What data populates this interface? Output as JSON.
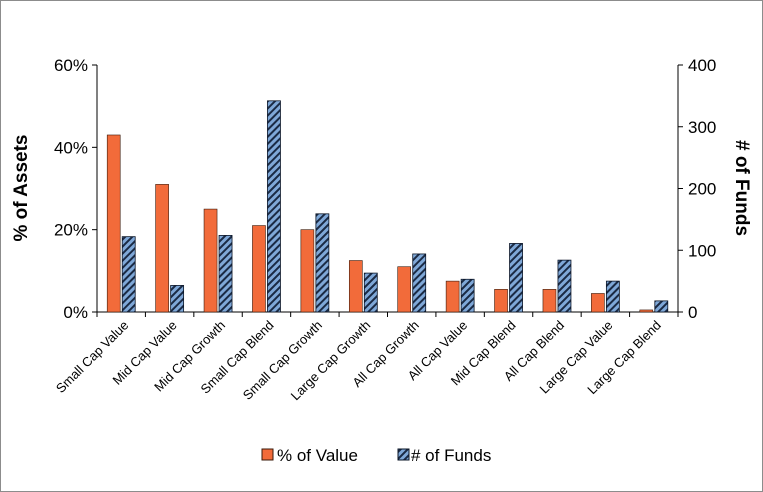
{
  "chart_data": {
    "type": "bar",
    "categories": [
      "Small Cap Value",
      "Mid Cap Value",
      "Mid Cap Growth",
      "Small Cap Blend",
      "Small Cap Growth",
      "Large Cap Growth",
      "All Cap Growth",
      "All Cap Value",
      "Mid Cap Blend",
      "All Cap Blend",
      "Large Cap Value",
      "Large Cap Blend"
    ],
    "series": [
      {
        "name": "% of Value",
        "axis": "left",
        "color": "#F26B3A",
        "pattern": "solid",
        "values": [
          0.43,
          0.31,
          0.25,
          0.21,
          0.2,
          0.125,
          0.11,
          0.075,
          0.055,
          0.055,
          0.045,
          0.005
        ]
      },
      {
        "name": "# of Funds",
        "axis": "right",
        "color": "#7FA8D8",
        "pattern": "diagonal-stripes-dark",
        "values": [
          122,
          43,
          124,
          342,
          159,
          63,
          94,
          53,
          111,
          84,
          50,
          18
        ]
      }
    ],
    "ylabel": "% of Assets",
    "ylim": [
      0,
      0.6
    ],
    "yticks": [
      "0%",
      "20%",
      "40%",
      "60%"
    ],
    "y2label": "# of Funds",
    "y2lim": [
      0,
      400
    ],
    "y2ticks": [
      "0",
      "100",
      "200",
      "300",
      "400"
    ],
    "grid": false,
    "legend_position": "bottom-center"
  }
}
